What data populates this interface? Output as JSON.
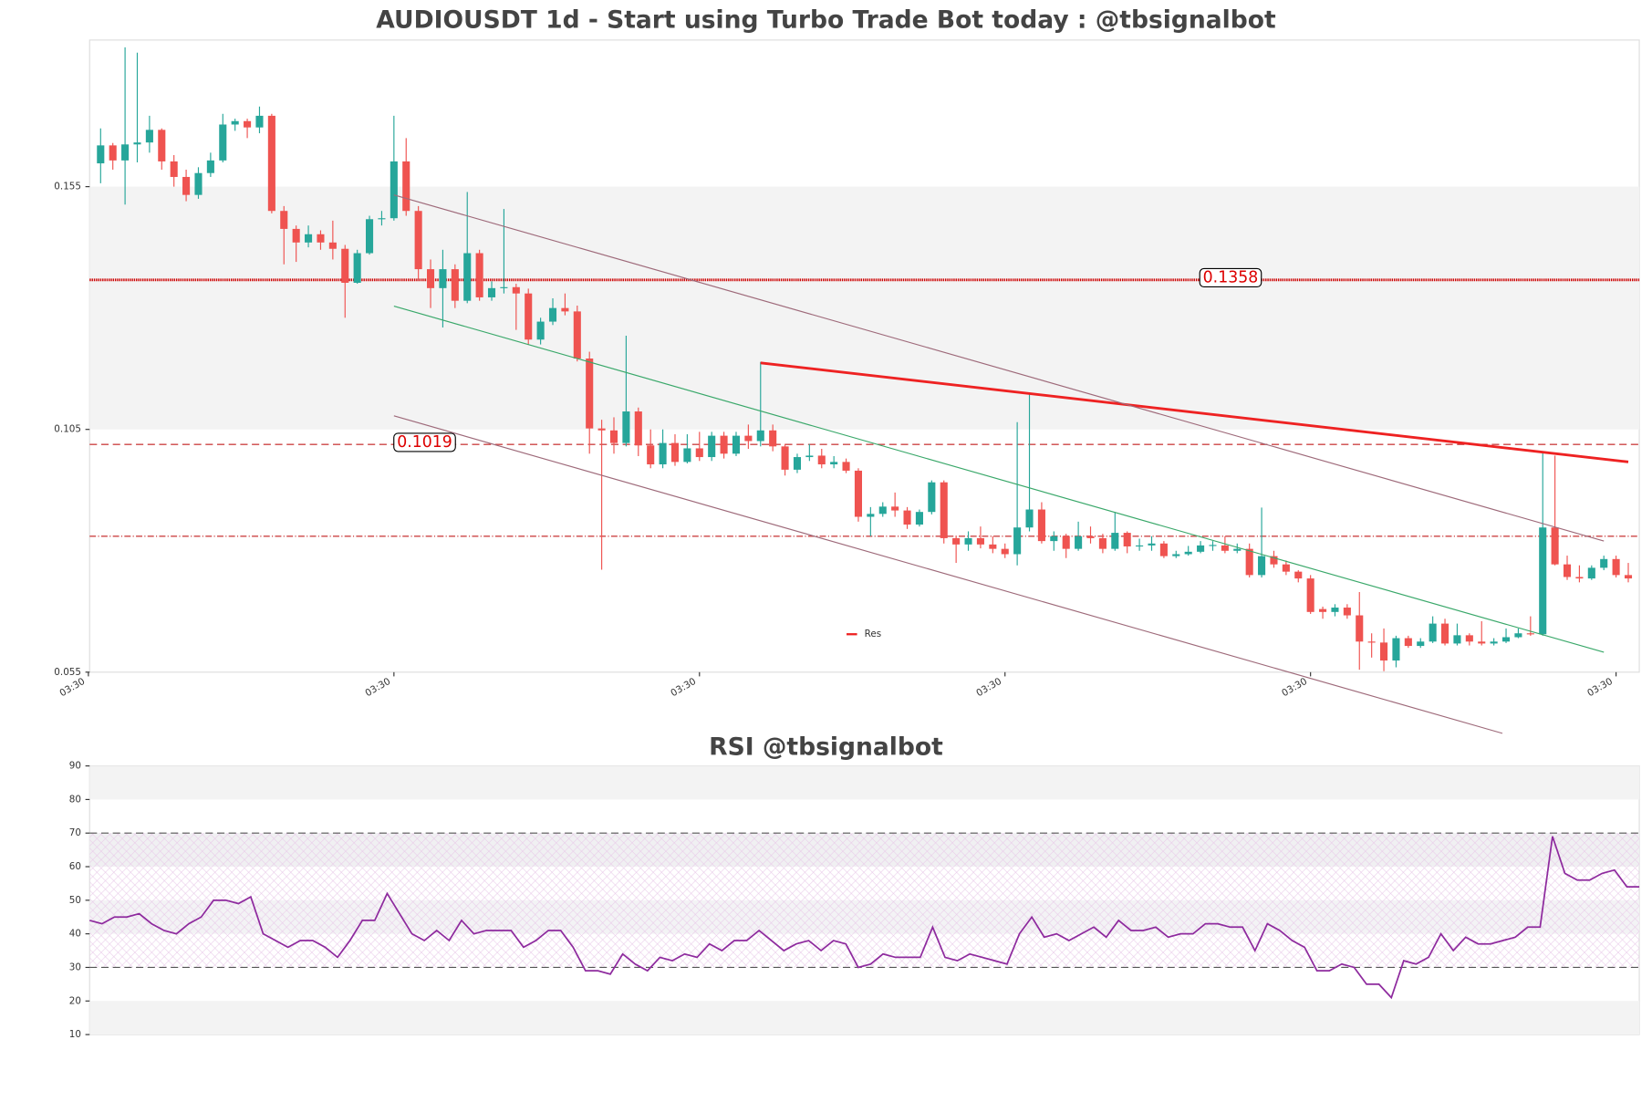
{
  "chart_data": [
    {
      "type": "candlestick",
      "title": "AUDIOUSDT 1d - Start using Turbo Trade Bot today : @tbsignalbot",
      "open": [
        0.1598,
        0.1635,
        0.1604,
        0.1637,
        0.1641,
        0.1667,
        0.1602,
        0.157,
        0.1533,
        0.1578,
        0.1604,
        0.1678,
        0.1685,
        0.1672,
        0.1696,
        0.15,
        0.1463,
        0.1435,
        0.1452,
        0.1435,
        0.1422,
        0.1352,
        0.1413,
        0.1483,
        0.1485,
        0.1602,
        0.15,
        0.138,
        0.1341,
        0.138,
        0.1315,
        0.1413,
        0.1322,
        0.1341,
        0.1343,
        0.133,
        0.1235,
        0.1272,
        0.13,
        0.1293,
        0.1196,
        0.1052,
        0.1048,
        0.1022,
        0.1087,
        0.1017,
        0.0978,
        0.1022,
        0.0983,
        0.1011,
        0.0993,
        0.1037,
        0.1,
        0.1037,
        0.1026,
        0.1048,
        0.1015,
        0.0967,
        0.0993,
        0.0996,
        0.0978,
        0.0983,
        0.0965,
        0.087,
        0.0876,
        0.0891,
        0.0883,
        0.0854,
        0.088,
        0.0941,
        0.0826,
        0.0813,
        0.0826,
        0.0813,
        0.0804,
        0.0793,
        0.0848,
        0.0885,
        0.082,
        0.083,
        0.0804,
        0.083,
        0.0826,
        0.0804,
        0.0837,
        0.0809,
        0.0811,
        0.0815,
        0.0789,
        0.0793,
        0.0798,
        0.0811,
        0.0811,
        0.08,
        0.0804,
        0.075,
        0.0789,
        0.0772,
        0.0757,
        0.0743,
        0.068,
        0.0674,
        0.0683,
        0.0667,
        0.0613,
        0.0611,
        0.0574,
        0.062,
        0.0604,
        0.0613,
        0.065,
        0.0609,
        0.0626,
        0.0613,
        0.0609,
        0.0613,
        0.0622,
        0.063,
        0.0628,
        0.0848,
        0.0772,
        0.0746,
        0.0743,
        0.0765,
        0.0783,
        0.075
      ],
      "high": [
        0.167,
        0.164,
        0.1837,
        0.1826,
        0.1696,
        0.167,
        0.1615,
        0.1585,
        0.159,
        0.162,
        0.17,
        0.169,
        0.169,
        0.1715,
        0.17,
        0.151,
        0.147,
        0.147,
        0.146,
        0.148,
        0.143,
        0.142,
        0.149,
        0.15,
        0.1696,
        0.165,
        0.151,
        0.14,
        0.142,
        0.139,
        0.1539,
        0.142,
        0.1355,
        0.1504,
        0.135,
        0.134,
        0.128,
        0.132,
        0.133,
        0.1305,
        0.121,
        0.107,
        0.1075,
        0.1243,
        0.1095,
        0.105,
        0.105,
        0.104,
        0.104,
        0.1045,
        0.1045,
        0.1045,
        0.1045,
        0.106,
        0.1189,
        0.106,
        0.102,
        0.1,
        0.102,
        0.101,
        0.0995,
        0.099,
        0.097,
        0.089,
        0.09,
        0.092,
        0.089,
        0.0885,
        0.0945,
        0.0945,
        0.083,
        0.084,
        0.085,
        0.083,
        0.0815,
        0.1065,
        0.1126,
        0.09,
        0.084,
        0.0835,
        0.086,
        0.085,
        0.0835,
        0.088,
        0.084,
        0.0825,
        0.083,
        0.082,
        0.08,
        0.081,
        0.082,
        0.082,
        0.083,
        0.0815,
        0.0815,
        0.0889,
        0.08,
        0.078,
        0.076,
        0.075,
        0.0685,
        0.069,
        0.069,
        0.0715,
        0.063,
        0.064,
        0.0625,
        0.0625,
        0.062,
        0.0665,
        0.066,
        0.065,
        0.063,
        0.0655,
        0.062,
        0.064,
        0.064,
        0.0665,
        0.1004,
        0.0996,
        0.079,
        0.077,
        0.077,
        0.079,
        0.079,
        0.0775
      ],
      "low": [
        0.1557,
        0.1585,
        0.1513,
        0.16,
        0.162,
        0.1585,
        0.155,
        0.152,
        0.1525,
        0.157,
        0.16,
        0.1665,
        0.165,
        0.166,
        0.1495,
        0.139,
        0.1395,
        0.1425,
        0.142,
        0.14,
        0.128,
        0.135,
        0.141,
        0.147,
        0.148,
        0.149,
        0.136,
        0.13,
        0.126,
        0.13,
        0.131,
        0.1315,
        0.1315,
        0.133,
        0.1255,
        0.1225,
        0.1225,
        0.1265,
        0.1285,
        0.119,
        0.1,
        0.0761,
        0.1,
        0.1015,
        0.0995,
        0.097,
        0.097,
        0.0975,
        0.098,
        0.0985,
        0.0985,
        0.099,
        0.0995,
        0.101,
        0.1015,
        0.1005,
        0.0955,
        0.096,
        0.0985,
        0.097,
        0.097,
        0.096,
        0.086,
        0.083,
        0.087,
        0.087,
        0.0845,
        0.085,
        0.0875,
        0.0815,
        0.0775,
        0.08,
        0.0805,
        0.0795,
        0.0785,
        0.077,
        0.084,
        0.0815,
        0.08,
        0.0785,
        0.08,
        0.0815,
        0.0795,
        0.08,
        0.0795,
        0.08,
        0.08,
        0.0785,
        0.0785,
        0.079,
        0.0795,
        0.08,
        0.0795,
        0.0795,
        0.0745,
        0.0745,
        0.0765,
        0.075,
        0.0735,
        0.067,
        0.066,
        0.0665,
        0.066,
        0.0555,
        0.058,
        0.0552,
        0.056,
        0.06,
        0.06,
        0.061,
        0.0605,
        0.0605,
        0.0605,
        0.0605,
        0.0605,
        0.061,
        0.062,
        0.0625,
        0.0625,
        0.077,
        0.074,
        0.0735,
        0.074,
        0.076,
        0.0745,
        0.0735
      ],
      "close": [
        0.1635,
        0.1604,
        0.1637,
        0.1641,
        0.1667,
        0.1602,
        0.157,
        0.1533,
        0.1578,
        0.1604,
        0.1678,
        0.1685,
        0.1672,
        0.1696,
        0.15,
        0.1463,
        0.1435,
        0.1452,
        0.1435,
        0.1422,
        0.1352,
        0.1413,
        0.1483,
        0.1485,
        0.1602,
        0.15,
        0.138,
        0.1341,
        0.138,
        0.1315,
        0.1413,
        0.1322,
        0.1341,
        0.1343,
        0.133,
        0.1235,
        0.1272,
        0.13,
        0.1293,
        0.1196,
        0.1052,
        0.1048,
        0.1022,
        0.1087,
        0.1017,
        0.0978,
        0.1022,
        0.0983,
        0.1011,
        0.0993,
        0.1037,
        0.1,
        0.1037,
        0.1026,
        0.1048,
        0.1015,
        0.0967,
        0.0993,
        0.0996,
        0.0978,
        0.0983,
        0.0965,
        0.087,
        0.0876,
        0.0891,
        0.0883,
        0.0854,
        0.088,
        0.0941,
        0.0826,
        0.0813,
        0.0826,
        0.0813,
        0.0804,
        0.0793,
        0.0848,
        0.0885,
        0.082,
        0.083,
        0.0804,
        0.083,
        0.0826,
        0.0804,
        0.0837,
        0.0809,
        0.0811,
        0.0815,
        0.0789,
        0.0793,
        0.0798,
        0.0811,
        0.0812,
        0.08,
        0.0804,
        0.075,
        0.0789,
        0.0772,
        0.0757,
        0.0743,
        0.0674,
        0.0674,
        0.0683,
        0.0667,
        0.0613,
        0.0611,
        0.0574,
        0.062,
        0.0604,
        0.0613,
        0.065,
        0.0609,
        0.0626,
        0.0613,
        0.0609,
        0.0613,
        0.0622,
        0.063,
        0.0628,
        0.0848,
        0.0772,
        0.0746,
        0.0743,
        0.0765,
        0.0783,
        0.075,
        0.0743
      ],
      "up_color": "#26a69a",
      "down_color": "#ef5350",
      "xlim": [
        -0.9,
        125.9
      ],
      "xticks": [
        {
          "value": -1,
          "label": "03:30"
        },
        {
          "value": 24,
          "label": "03:30"
        },
        {
          "value": 49,
          "label": "03:30"
        },
        {
          "value": 74,
          "label": "03:30"
        },
        {
          "value": 99,
          "label": "03:30"
        },
        {
          "value": 124,
          "label": "03:30"
        }
      ],
      "ylim": [
        0.055,
        0.1852
      ],
      "yticks": [
        0.055,
        0.105,
        0.155
      ],
      "bands": [
        {
          "from": 0.105,
          "to": 0.155,
          "color": "#f3f3f3"
        }
      ],
      "hlines": [
        {
          "value": 0.1358,
          "label": "0.1358",
          "color": "#cc0000",
          "style": "dotted"
        },
        {
          "value": 0.1019,
          "label": "0.1019",
          "color": "#cc4444",
          "style": "dashed"
        },
        {
          "value": 0.083,
          "color": "#cc4444",
          "style": "dashdot"
        }
      ],
      "trendlines": [
        {
          "name": "Res",
          "color": "#ee2222",
          "x": [
            54,
            125
          ],
          "y": [
            0.1187,
            0.0983
          ]
        },
        {
          "color": "#9e6a7a",
          "x": [
            24,
            123
          ],
          "y": [
            0.1533,
            0.082
          ]
        },
        {
          "color": "#3aa86a",
          "x": [
            24,
            123
          ],
          "y": [
            0.1304,
            0.0591
          ]
        },
        {
          "color": "#9e6a7a",
          "x": [
            24,
            114.7
          ],
          "y": [
            0.1078,
            0.0424
          ]
        }
      ],
      "legend": "lower center"
    },
    {
      "type": "line",
      "title": "RSI @tbsignalbot",
      "color": "#8e2a9e",
      "values": [
        44,
        43,
        45,
        45,
        46,
        43,
        41,
        40,
        43,
        45,
        50,
        50,
        49,
        51,
        40,
        38,
        36,
        38,
        38,
        36,
        33,
        38,
        44,
        44,
        52,
        46,
        40,
        38,
        41,
        38,
        44,
        40,
        41,
        41,
        41,
        36,
        38,
        41,
        41,
        36,
        29,
        29,
        28,
        34,
        31,
        29,
        33,
        32,
        34,
        33,
        37,
        35,
        38,
        38,
        41,
        38,
        35,
        37,
        38,
        35,
        38,
        37,
        30,
        31,
        34,
        33,
        33,
        33,
        42,
        33,
        32,
        34,
        33,
        32,
        31,
        40,
        45,
        39,
        40,
        38,
        40,
        42,
        39,
        44,
        41,
        41,
        42,
        39,
        40,
        40,
        43,
        43,
        42,
        42,
        35,
        43,
        41,
        38,
        36,
        29,
        29,
        31,
        30,
        25,
        25,
        21,
        32,
        31,
        33,
        40,
        35,
        39,
        37,
        37,
        38,
        39,
        42,
        42,
        69,
        58,
        56,
        56,
        58,
        59,
        54,
        54
      ],
      "ylim": [
        10,
        90
      ],
      "yticks": [
        10,
        20,
        30,
        40,
        50,
        60,
        70,
        80,
        90
      ],
      "bands": [
        {
          "from": 80,
          "to": 90,
          "color": "#f3f3f3"
        },
        {
          "from": 60,
          "to": 70,
          "color": "#f0f0f2"
        },
        {
          "from": 40,
          "to": 50,
          "color": "#f3f3f5"
        },
        {
          "from": 10,
          "to": 20,
          "color": "#f3f3f3"
        }
      ],
      "hatch": {
        "from": 30,
        "to": 70
      },
      "hlines": [
        {
          "value": 30,
          "color": "#555555",
          "style": "dashed"
        },
        {
          "value": 70,
          "color": "#555555",
          "style": "dashed"
        }
      ]
    }
  ]
}
